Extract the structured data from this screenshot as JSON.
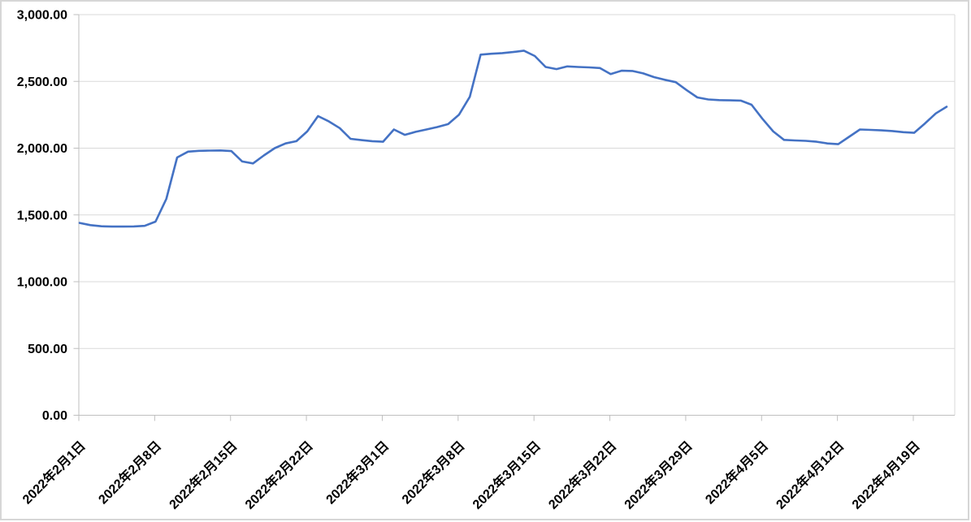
{
  "chart_data": {
    "type": "line",
    "title": "",
    "legend": "none",
    "grid": "horizontal",
    "ylim": [
      0,
      3000
    ],
    "x_interval": "daily",
    "series": [
      {
        "name": "series-1",
        "color": "#4472C4",
        "values": [
          1440,
          1424,
          1415,
          1413,
          1413,
          1414,
          1418,
          1450,
          1620,
          1930,
          1974,
          1980,
          1982,
          1983,
          1978,
          1900,
          1886,
          1945,
          2000,
          2035,
          2052,
          2125,
          2240,
          2200,
          2150,
          2070,
          2060,
          2052,
          2048,
          2140,
          2100,
          2122,
          2140,
          2158,
          2180,
          2250,
          2385,
          2700,
          2707,
          2712,
          2720,
          2730,
          2690,
          2608,
          2592,
          2612,
          2608,
          2605,
          2600,
          2555,
          2580,
          2578,
          2560,
          2532,
          2512,
          2494,
          2435,
          2380,
          2365,
          2360,
          2358,
          2356,
          2325,
          2220,
          2125,
          2062,
          2058,
          2055,
          2048,
          2035,
          2030,
          2085,
          2140,
          2137,
          2133,
          2128,
          2120,
          2115,
          2185,
          2260,
          2310
        ]
      }
    ],
    "x_ticks": [
      {
        "label": "2022年2月1日",
        "day_index": 0
      },
      {
        "label": "2022年2月8日",
        "day_index": 7
      },
      {
        "label": "2022年2月15日",
        "day_index": 14
      },
      {
        "label": "2022年2月22日",
        "day_index": 21
      },
      {
        "label": "2022年3月1日",
        "day_index": 28
      },
      {
        "label": "2022年3月8日",
        "day_index": 35
      },
      {
        "label": "2022年3月15日",
        "day_index": 42
      },
      {
        "label": "2022年3月22日",
        "day_index": 49
      },
      {
        "label": "2022年3月29日",
        "day_index": 56
      },
      {
        "label": "2022年4月5日",
        "day_index": 63
      },
      {
        "label": "2022年4月12日",
        "day_index": 70
      },
      {
        "label": "2022年4月19日",
        "day_index": 77
      }
    ],
    "y_ticks": [
      {
        "value": 0,
        "label": "0.00"
      },
      {
        "value": 500,
        "label": "500.00"
      },
      {
        "value": 1000,
        "label": "1,000.00"
      },
      {
        "value": 1500,
        "label": "1,500.00"
      },
      {
        "value": 2000,
        "label": "2,000.00"
      },
      {
        "value": 2500,
        "label": "2,500.00"
      },
      {
        "value": 3000,
        "label": "3,000.00"
      }
    ]
  },
  "colors": {
    "line": "#4472C4",
    "gridline": "#D9D9D9",
    "plot_right_border": "#D9D9D9",
    "axis": "#BFBFBF",
    "tick": "#BFBFBF",
    "text": "#000000",
    "background": "#FFFFFF",
    "frame_border": "#D6D6D6"
  }
}
